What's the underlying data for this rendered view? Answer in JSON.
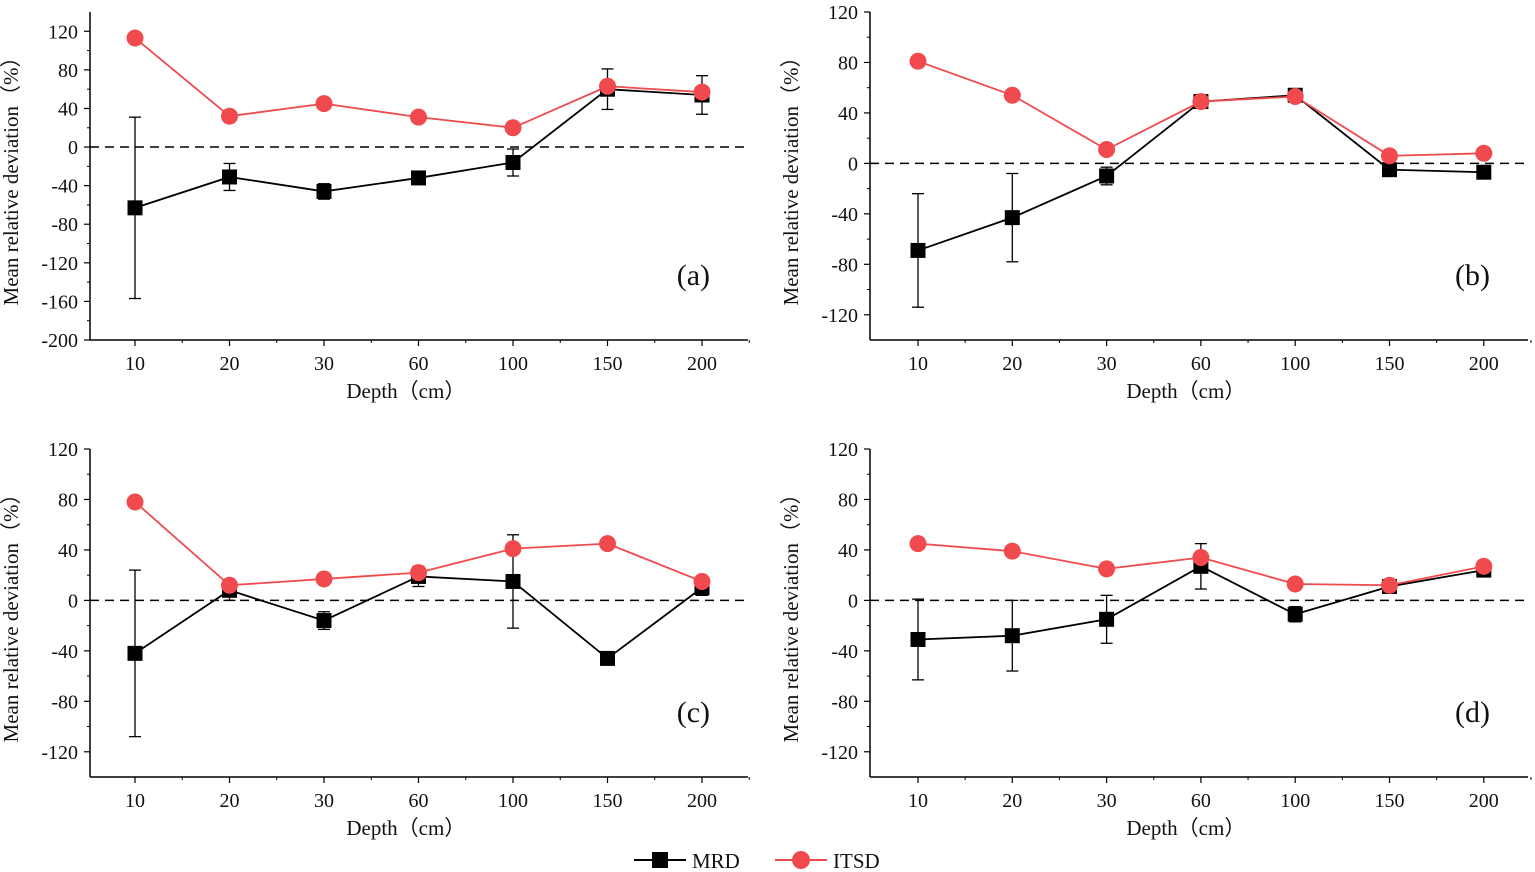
{
  "legend": {
    "items": [
      {
        "name": "MRD",
        "color": "#000000",
        "marker": "square"
      },
      {
        "name": "ITSD",
        "color": "#f04a4e",
        "marker": "circle"
      }
    ],
    "placement": "bottom-center"
  },
  "chart_data": [
    {
      "type": "line",
      "panel_label": "(a)",
      "xlabel": "Depth（cm）",
      "ylabel": "Mean relative deviation（%）",
      "categories": [
        "10",
        "20",
        "30",
        "60",
        "100",
        "150",
        "200"
      ],
      "ylim": [
        -200,
        140
      ],
      "yticks": [
        120,
        80,
        40,
        0,
        -40,
        -80,
        -120,
        -160,
        -200
      ],
      "reference_line": 0,
      "series": [
        {
          "name": "MRD",
          "values": [
            -63,
            -31,
            -46,
            -32,
            -16,
            60,
            54
          ],
          "error": [
            [
              94,
              94
            ],
            [
              14,
              14
            ],
            [
              8,
              8
            ],
            [
              6,
              6
            ],
            [
              14,
              14
            ],
            [
              21,
              21
            ],
            [
              20,
              20
            ]
          ]
        },
        {
          "name": "ITSD",
          "values": [
            113,
            32,
            45,
            31,
            20,
            63,
            57
          ]
        }
      ]
    },
    {
      "type": "line",
      "panel_label": "(b)",
      "xlabel": "Depth（cm）",
      "ylabel": "Mean relative deviation（%）",
      "categories": [
        "10",
        "20",
        "30",
        "60",
        "100",
        "150",
        "200"
      ],
      "ylim": [
        -140,
        120
      ],
      "yticks": [
        120,
        80,
        40,
        0,
        -40,
        -80,
        -120
      ],
      "reference_line": 0,
      "series": [
        {
          "name": "MRD",
          "values": [
            -69,
            -43,
            -10,
            49,
            54,
            -5,
            -7
          ],
          "error": [
            [
              45,
              45
            ],
            [
              35,
              35
            ],
            [
              7,
              7
            ],
            [
              3,
              3
            ],
            [
              3,
              3
            ],
            [
              3,
              3
            ],
            [
              2,
              2
            ]
          ]
        },
        {
          "name": "ITSD",
          "values": [
            81,
            54,
            11,
            49,
            53,
            6,
            8
          ]
        }
      ]
    },
    {
      "type": "line",
      "panel_label": "(c)",
      "xlabel": "Depth（cm）",
      "ylabel": "Mean relative deviation（%）",
      "categories": [
        "10",
        "20",
        "30",
        "60",
        "100",
        "150",
        "200"
      ],
      "ylim": [
        -140,
        120
      ],
      "yticks": [
        120,
        80,
        40,
        0,
        -40,
        -80,
        -120
      ],
      "reference_line": 0,
      "series": [
        {
          "name": "MRD",
          "values": [
            -42,
            8,
            -16,
            19,
            15,
            -46,
            10
          ],
          "error": [
            [
              66,
              66
            ],
            [
              8,
              8
            ],
            [
              7,
              7
            ],
            [
              8,
              8
            ],
            [
              37,
              37
            ],
            [
              1,
              1
            ],
            [
              6,
              6
            ]
          ]
        },
        {
          "name": "ITSD",
          "values": [
            78,
            12,
            17,
            22,
            41,
            45,
            15
          ]
        }
      ]
    },
    {
      "type": "line",
      "panel_label": "(d)",
      "xlabel": "Depth（cm）",
      "ylabel": "Mean relative deviation（%）",
      "categories": [
        "10",
        "20",
        "30",
        "60",
        "100",
        "150",
        "200"
      ],
      "ylim": [
        -140,
        120
      ],
      "yticks": [
        120,
        80,
        40,
        0,
        -40,
        -80,
        -120
      ],
      "reference_line": 0,
      "series": [
        {
          "name": "MRD",
          "values": [
            -31,
            -28,
            -15,
            27,
            -11,
            11,
            24
          ],
          "error": [
            [
              32,
              32
            ],
            [
              28,
              28
            ],
            [
              19,
              19
            ],
            [
              18,
              18
            ],
            [
              6,
              6
            ],
            [
              4,
              4
            ],
            [
              3,
              3
            ]
          ]
        },
        {
          "name": "ITSD",
          "values": [
            45,
            39,
            25,
            34,
            13,
            12,
            27
          ]
        }
      ]
    }
  ]
}
